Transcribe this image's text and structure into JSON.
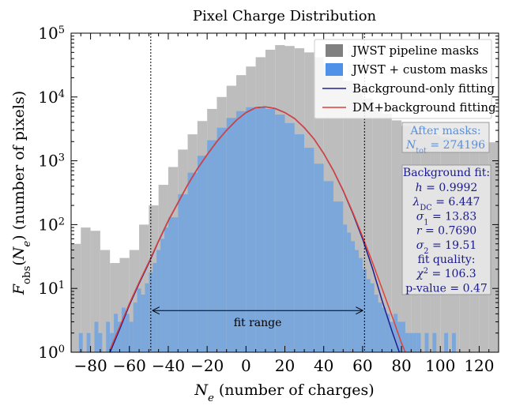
{
  "chart_data": {
    "type": "bar",
    "title": "Pixel Charge Distribution",
    "xlabel": "N_e (number of charges)",
    "ylabel": "F_obs(N_e) (number of pixels)",
    "xlim": [
      -90,
      130
    ],
    "ylim": [
      1,
      100000
    ],
    "yscale": "log",
    "grid": false,
    "legend_position": "top-right",
    "x_ticks": [
      -80,
      -60,
      -40,
      -20,
      0,
      20,
      40,
      60,
      80,
      100,
      120
    ],
    "y_ticks": [
      1,
      10,
      100,
      1000,
      10000,
      100000
    ],
    "x_tick_labels": [
      "−80",
      "−60",
      "−40",
      "−20",
      "0",
      "20",
      "40",
      "60",
      "80",
      "100",
      "120"
    ],
    "y_tick_labels": [
      {
        "base": "10",
        "exp": "0"
      },
      {
        "base": "10",
        "exp": "1"
      },
      {
        "base": "10",
        "exp": "2"
      },
      {
        "base": "10",
        "exp": "3"
      },
      {
        "base": "10",
        "exp": "4"
      },
      {
        "base": "10",
        "exp": "5"
      }
    ],
    "axis_labels": {
      "x": {
        "symbol": "N",
        "sub": "e",
        "rest": " (number of charges)"
      },
      "y": {
        "symbol": "F",
        "sub": "obs",
        "open": "(",
        "arg": "N",
        "argsub": "e",
        "rest": ") (number of pixels)"
      }
    },
    "series": [
      {
        "name": "JWST pipeline masks",
        "kind": "histogram",
        "color": "#bdbdbd",
        "legend_color": "#808080",
        "x": [
          -90,
          -85,
          -80,
          -75,
          -70,
          -65,
          -60,
          -55,
          -50,
          -45,
          -40,
          -35,
          -30,
          -25,
          -20,
          -15,
          -10,
          -5,
          0,
          5,
          10,
          15,
          20,
          25,
          30,
          35,
          40,
          45,
          50,
          55,
          60,
          65,
          70,
          75,
          80,
          85,
          90,
          95,
          100,
          105,
          110,
          115,
          120,
          125,
          130
        ],
        "values": [
          50,
          90,
          80,
          40,
          25,
          30,
          40,
          100,
          200,
          420,
          800,
          1500,
          2600,
          4200,
          6500,
          10000,
          15000,
          22000,
          30000,
          42000,
          55000,
          65000,
          63000,
          58000,
          50000,
          42000,
          33000,
          25000,
          18000,
          13000,
          9500,
          7000,
          5500,
          4300,
          3500,
          3000,
          2700,
          2500,
          2300,
          2200,
          2100,
          2050,
          2000,
          1950,
          1900
        ]
      },
      {
        "name": "JWST + custom masks",
        "kind": "histogram",
        "color": "#7ba7db",
        "legend_color": "#4f91e8",
        "x": [
          -86,
          -84,
          -82,
          -80,
          -78,
          -76,
          -74,
          -72,
          -70,
          -68,
          -66,
          -64,
          -62,
          -60,
          -58,
          -56,
          -54,
          -52,
          -50,
          -48,
          -46,
          -44,
          -42,
          -40,
          -35,
          -30,
          -25,
          -20,
          -15,
          -10,
          -5,
          0,
          5,
          10,
          15,
          20,
          25,
          30,
          35,
          40,
          45,
          50,
          52,
          54,
          56,
          58,
          60,
          62,
          64,
          66,
          68,
          70,
          72,
          74,
          76,
          78,
          80,
          82,
          84,
          86,
          88,
          90,
          92,
          94,
          96,
          98,
          100,
          102,
          104,
          106,
          108
        ],
        "values": [
          2,
          1,
          2,
          1,
          3,
          2,
          1,
          3,
          2,
          4,
          3,
          5,
          4,
          3,
          6,
          10,
          8,
          12,
          18,
          25,
          40,
          60,
          90,
          130,
          300,
          650,
          1200,
          2100,
          3300,
          4700,
          6000,
          6900,
          7000,
          6500,
          5300,
          3900,
          2600,
          1600,
          900,
          480,
          230,
          100,
          75,
          55,
          40,
          30,
          20,
          14,
          12,
          8,
          6,
          5,
          4,
          3,
          4,
          3,
          3,
          2,
          2,
          2,
          2,
          1,
          2,
          1,
          2,
          1,
          1,
          2,
          1,
          2,
          1
        ]
      },
      {
        "name": "Background-only fitting",
        "kind": "line",
        "color": "#1e1e8f",
        "x": [
          -70,
          -65,
          -60,
          -55,
          -50,
          -45,
          -40,
          -35,
          -30,
          -25,
          -20,
          -15,
          -10,
          -5,
          0,
          5,
          10,
          15,
          20,
          25,
          30,
          35,
          40,
          45,
          50,
          55,
          60,
          65,
          70,
          75,
          80
        ],
        "values": [
          1,
          2.3,
          5.5,
          12,
          25,
          55,
          115,
          220,
          420,
          750,
          1250,
          2000,
          3000,
          4300,
          5700,
          6800,
          7000,
          6600,
          5700,
          4600,
          3300,
          2200,
          1300,
          700,
          340,
          150,
          60,
          21,
          6.5,
          2.2,
          0.8
        ]
      },
      {
        "name": "DM+background fitting",
        "kind": "line",
        "color": "#e0403a",
        "x": [
          -70,
          -65,
          -60,
          -55,
          -50,
          -45,
          -40,
          -35,
          -30,
          -25,
          -20,
          -15,
          -10,
          -5,
          0,
          5,
          10,
          15,
          20,
          25,
          30,
          35,
          40,
          45,
          50,
          55,
          60,
          65,
          70,
          75,
          80,
          85
        ],
        "values": [
          1.1,
          2.5,
          5.8,
          12.5,
          26,
          56,
          116,
          222,
          422,
          752,
          1252,
          2002,
          3002,
          4302,
          5702,
          6802,
          7002,
          6602,
          5702,
          4602,
          3302,
          2202,
          1302,
          702,
          345,
          155,
          65,
          26,
          10,
          3.8,
          1.4,
          0.6
        ]
      }
    ],
    "vertical_lines": [
      -49,
      61
    ],
    "annotations": {
      "fit_range": {
        "label": "fit range",
        "x_start": -49,
        "x_end": 61,
        "y": 4.5
      },
      "after_masks": {
        "title": "After masks:",
        "symbol": "N",
        "sub": "tot",
        "eq": " = 274196",
        "color": "#5b8fd8"
      },
      "background_fit": {
        "title": "Background fit:",
        "color": "#1a1a8c",
        "lines": [
          {
            "symbol": "h",
            "sub": "",
            "eq": " = 0.9992"
          },
          {
            "symbol": "λ",
            "sub": "DC",
            "eq": " = 6.447"
          },
          {
            "symbol": "σ",
            "sub": "1",
            "eq": " = 13.83"
          },
          {
            "symbol": "r",
            "sub": "",
            "eq": " = 0.7690"
          },
          {
            "symbol": "σ",
            "sub": "2",
            "eq": " = 19.51"
          },
          {
            "symbol": "",
            "sub": "",
            "eq": "fit quality:"
          },
          {
            "symbol": "χ",
            "sup": "2",
            "sub": "",
            "eq": " = 106.3"
          },
          {
            "symbol": "",
            "sub": "",
            "eq": "p-value = 0.47"
          }
        ]
      }
    }
  }
}
